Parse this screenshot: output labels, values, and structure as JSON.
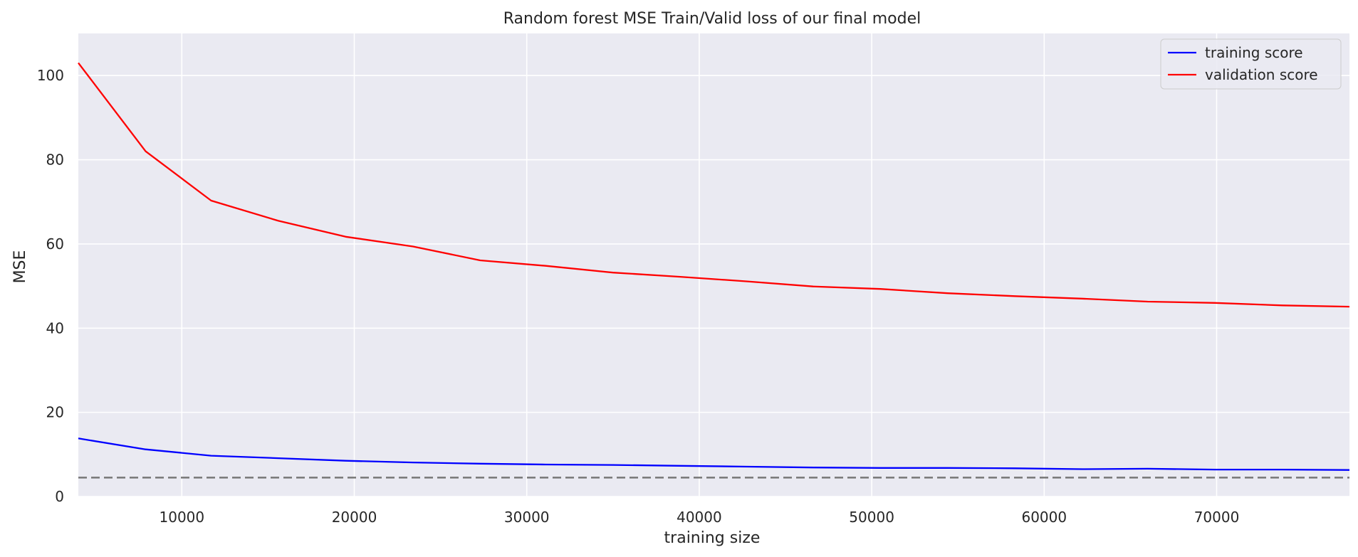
{
  "chart_data": {
    "type": "line",
    "title": "Random forest MSE Train/Valid loss of our final model",
    "xlabel": "training size",
    "ylabel": "MSE",
    "xlim": [
      4000,
      77700
    ],
    "ylim": [
      0,
      110
    ],
    "xticks": [
      10000,
      20000,
      30000,
      40000,
      50000,
      60000,
      70000
    ],
    "yticks": [
      0,
      20,
      40,
      60,
      80,
      100
    ],
    "grid": true,
    "legend_position": "top-right",
    "baseline": {
      "y": 4.5,
      "color": "#777777",
      "style": "dashed"
    },
    "x": [
      4000,
      7900,
      11700,
      15600,
      19500,
      23400,
      27300,
      31100,
      35000,
      38900,
      42800,
      46600,
      50500,
      54400,
      58300,
      62200,
      66000,
      69900,
      73800,
      77700
    ],
    "series": [
      {
        "name": "training score",
        "color": "#0000ff",
        "values": [
          13.8,
          11.2,
          9.7,
          9.1,
          8.5,
          8.1,
          7.8,
          7.6,
          7.5,
          7.3,
          7.1,
          6.9,
          6.8,
          6.8,
          6.7,
          6.5,
          6.6,
          6.4,
          6.4,
          6.3
        ]
      },
      {
        "name": "validation score",
        "color": "#ff0000",
        "values": [
          103.0,
          82.0,
          70.3,
          65.5,
          61.7,
          59.4,
          56.1,
          54.8,
          53.2,
          52.2,
          51.1,
          49.9,
          49.3,
          48.3,
          47.6,
          47.0,
          46.3,
          46.0,
          45.4,
          45.1
        ]
      }
    ]
  }
}
